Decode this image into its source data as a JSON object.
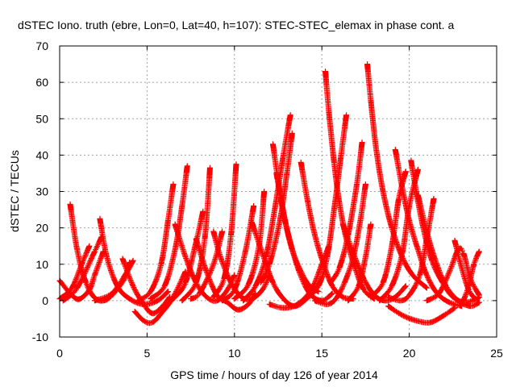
{
  "chart_data": {
    "type": "scatter",
    "title": "dSTEC Iono. truth (ebre, Lon=0, Lat=40, h=107): STEC-STEC_elemax in phase cont. a",
    "xlabel": "GPS time / hours of day 126 of year 2014",
    "ylabel": "dSTEC  / TECUs",
    "xlim": [
      0,
      25
    ],
    "ylim": [
      -10,
      70
    ],
    "xticks": [
      0,
      5,
      10,
      15,
      20,
      25
    ],
    "yticks": [
      -10,
      0,
      10,
      20,
      30,
      40,
      50,
      60,
      70
    ],
    "grid": true,
    "marker": "+",
    "color": "#ff0000",
    "series": [
      {
        "points": [
          [
            0.0,
            5.5
          ],
          [
            0.6,
            2.0
          ],
          [
            1.1,
            0.4
          ],
          [
            1.7,
            3.0
          ],
          [
            2.0,
            7.0
          ],
          [
            2.5,
            13.5
          ]
        ]
      },
      {
        "points": [
          [
            0.0,
            0.5
          ],
          [
            0.7,
            3.5
          ],
          [
            1.3,
            10.5
          ],
          [
            1.7,
            15.0
          ]
        ]
      },
      {
        "points": [
          [
            0.6,
            26.5
          ],
          [
            1.0,
            14.0
          ],
          [
            1.5,
            5.0
          ],
          [
            2.0,
            0.8
          ],
          [
            2.5,
            0.0
          ],
          [
            3.0,
            1.5
          ],
          [
            3.7,
            6.0
          ],
          [
            4.0,
            10.5
          ]
        ]
      },
      {
        "points": [
          [
            0.2,
            0.0
          ],
          [
            1.0,
            3.5
          ],
          [
            2.0,
            13.5
          ],
          [
            2.4,
            17.5
          ]
        ]
      },
      {
        "points": [
          [
            2.3,
            22.5
          ],
          [
            2.7,
            12.0
          ],
          [
            3.3,
            4.0
          ],
          [
            4.0,
            0.5
          ],
          [
            4.8,
            -1.0
          ],
          [
            5.6,
            0.0
          ],
          [
            6.2,
            2.5
          ]
        ]
      },
      {
        "points": [
          [
            2.0,
            0.0
          ],
          [
            3.0,
            2.0
          ],
          [
            3.8,
            7.5
          ],
          [
            4.2,
            11.0
          ]
        ]
      },
      {
        "points": [
          [
            3.6,
            11.5
          ],
          [
            4.2,
            4.0
          ],
          [
            4.8,
            -1.0
          ],
          [
            5.3,
            -3.5
          ],
          [
            5.8,
            -2.0
          ],
          [
            6.3,
            1.0
          ]
        ]
      },
      {
        "points": [
          [
            4.3,
            -3.0
          ],
          [
            4.8,
            -5.5
          ],
          [
            5.3,
            -6.0
          ],
          [
            5.9,
            -3.0
          ],
          [
            6.5,
            1.0
          ],
          [
            7.2,
            8.0
          ]
        ]
      },
      {
        "points": [
          [
            4.5,
            0.0
          ],
          [
            5.2,
            2.5
          ],
          [
            5.8,
            10.0
          ],
          [
            6.2,
            22.0
          ],
          [
            6.5,
            32.0
          ]
        ]
      },
      {
        "points": [
          [
            5.2,
            0.5
          ],
          [
            6.0,
            4.0
          ],
          [
            6.6,
            14.0
          ],
          [
            7.0,
            26.0
          ],
          [
            7.3,
            37.0
          ]
        ]
      },
      {
        "points": [
          [
            5.8,
            -2.0
          ],
          [
            6.5,
            0.5
          ],
          [
            7.2,
            5.0
          ],
          [
            7.8,
            16.0
          ],
          [
            8.2,
            24.5
          ]
        ]
      },
      {
        "points": [
          [
            6.6,
            21.0
          ],
          [
            7.2,
            12.0
          ],
          [
            7.8,
            5.0
          ],
          [
            8.4,
            1.0
          ],
          [
            9.0,
            0.0
          ],
          [
            9.6,
            3.0
          ],
          [
            10.0,
            7.0
          ]
        ]
      },
      {
        "points": [
          [
            7.0,
            0.0
          ],
          [
            7.8,
            5.0
          ],
          [
            8.3,
            17.0
          ],
          [
            8.6,
            36.5
          ]
        ]
      },
      {
        "points": [
          [
            7.5,
            0.5
          ],
          [
            8.0,
            2.0
          ],
          [
            8.8,
            10.0
          ],
          [
            9.3,
            19.0
          ]
        ]
      },
      {
        "points": [
          [
            7.8,
            17.0
          ],
          [
            8.4,
            8.0
          ],
          [
            9.0,
            1.5
          ],
          [
            9.6,
            -0.5
          ],
          [
            10.2,
            -2.5
          ],
          [
            10.8,
            -1.0
          ],
          [
            11.2,
            2.0
          ]
        ]
      },
      {
        "points": [
          [
            8.8,
            19.0
          ],
          [
            9.2,
            12.0
          ],
          [
            9.8,
            5.0
          ],
          [
            10.4,
            1.0
          ],
          [
            11.0,
            0.5
          ],
          [
            11.6,
            3.0
          ],
          [
            12.0,
            7.0
          ]
        ]
      },
      {
        "points": [
          [
            8.8,
            1.0
          ],
          [
            9.4,
            6.0
          ],
          [
            9.8,
            18.0
          ],
          [
            10.1,
            37.5
          ]
        ]
      },
      {
        "points": [
          [
            9.3,
            0.0
          ],
          [
            10.0,
            3.0
          ],
          [
            10.6,
            13.0
          ],
          [
            11.1,
            26.0
          ]
        ]
      },
      {
        "points": [
          [
            10.0,
            0.5
          ],
          [
            10.8,
            4.5
          ],
          [
            11.4,
            15.0
          ],
          [
            11.7,
            30.0
          ]
        ]
      },
      {
        "points": [
          [
            11.0,
            21.5
          ],
          [
            11.6,
            13.0
          ],
          [
            12.2,
            5.0
          ],
          [
            12.8,
            0.5
          ],
          [
            13.4,
            -1.5
          ],
          [
            14.0,
            0.0
          ],
          [
            14.6,
            4.0
          ]
        ]
      },
      {
        "points": [
          [
            10.5,
            0.0
          ],
          [
            11.2,
            4.0
          ],
          [
            11.8,
            12.0
          ],
          [
            12.3,
            25.0
          ],
          [
            12.8,
            40.0
          ],
          [
            13.2,
            51.0
          ]
        ]
      },
      {
        "points": [
          [
            11.5,
            5.0
          ],
          [
            12.0,
            10.0
          ],
          [
            12.6,
            22.0
          ],
          [
            13.0,
            35.0
          ],
          [
            13.3,
            46.0
          ]
        ]
      },
      {
        "points": [
          [
            12.2,
            43.0
          ],
          [
            12.5,
            33.0
          ],
          [
            12.9,
            22.0
          ],
          [
            13.3,
            14.0
          ],
          [
            13.8,
            8.0
          ],
          [
            14.3,
            4.0
          ],
          [
            14.8,
            2.5
          ]
        ]
      },
      {
        "points": [
          [
            12.4,
            35.0
          ],
          [
            12.8,
            24.0
          ],
          [
            13.2,
            16.0
          ],
          [
            13.7,
            8.0
          ],
          [
            14.3,
            2.0
          ],
          [
            15.0,
            0.0
          ],
          [
            15.6,
            2.0
          ]
        ]
      },
      {
        "points": [
          [
            12.0,
            -1.0
          ],
          [
            12.8,
            -2.0
          ],
          [
            13.6,
            -1.0
          ],
          [
            14.4,
            3.0
          ],
          [
            15.0,
            10.0
          ],
          [
            15.4,
            15.0
          ]
        ]
      },
      {
        "points": [
          [
            13.8,
            38.0
          ],
          [
            14.2,
            27.0
          ],
          [
            14.6,
            18.0
          ],
          [
            15.1,
            10.0
          ],
          [
            15.6,
            4.0
          ],
          [
            16.2,
            1.0
          ],
          [
            16.8,
            0.5
          ]
        ]
      },
      {
        "points": [
          [
            14.0,
            0.0
          ],
          [
            14.8,
            4.0
          ],
          [
            15.3,
            12.0
          ],
          [
            15.7,
            25.0
          ],
          [
            16.1,
            40.0
          ],
          [
            16.4,
            51.0
          ]
        ]
      },
      {
        "points": [
          [
            15.2,
            63.0
          ],
          [
            15.4,
            52.0
          ],
          [
            15.7,
            38.0
          ],
          [
            16.0,
            27.0
          ],
          [
            16.4,
            17.0
          ],
          [
            16.9,
            9.0
          ],
          [
            17.4,
            3.0
          ],
          [
            18.0,
            0.5
          ]
        ]
      },
      {
        "points": [
          [
            14.6,
            0.0
          ],
          [
            15.3,
            -1.0
          ],
          [
            15.8,
            0.5
          ],
          [
            16.3,
            5.0
          ],
          [
            16.8,
            12.0
          ],
          [
            17.2,
            22.0
          ],
          [
            17.5,
            32.0
          ]
        ]
      },
      {
        "points": [
          [
            15.5,
            5.0
          ],
          [
            16.0,
            9.0
          ],
          [
            16.5,
            18.0
          ],
          [
            17.0,
            32.0
          ],
          [
            17.3,
            43.5
          ]
        ]
      },
      {
        "points": [
          [
            16.2,
            21.0
          ],
          [
            16.8,
            13.0
          ],
          [
            17.4,
            6.0
          ],
          [
            18.0,
            1.5
          ],
          [
            18.6,
            0.0
          ],
          [
            19.2,
            1.0
          ],
          [
            19.8,
            4.0
          ]
        ]
      },
      {
        "points": [
          [
            16.5,
            0.0
          ],
          [
            17.1,
            4.0
          ],
          [
            17.5,
            12.0
          ],
          [
            17.8,
            21.0
          ]
        ]
      },
      {
        "points": [
          [
            17.6,
            65.0
          ],
          [
            17.8,
            55.0
          ],
          [
            18.1,
            42.0
          ],
          [
            18.5,
            30.0
          ],
          [
            19.0,
            20.0
          ],
          [
            19.6,
            12.0
          ],
          [
            20.2,
            7.0
          ],
          [
            21.0,
            3.5
          ]
        ]
      },
      {
        "points": [
          [
            17.8,
            1.0
          ],
          [
            18.5,
            5.0
          ],
          [
            19.0,
            15.0
          ],
          [
            19.4,
            28.0
          ],
          [
            19.8,
            35.5
          ]
        ]
      },
      {
        "points": [
          [
            18.3,
            0.0
          ],
          [
            19.0,
            4.0
          ],
          [
            19.6,
            13.0
          ],
          [
            20.0,
            26.0
          ],
          [
            20.5,
            36.0
          ]
        ]
      },
      {
        "points": [
          [
            19.2,
            41.5
          ],
          [
            19.6,
            31.0
          ],
          [
            20.0,
            22.0
          ],
          [
            20.5,
            14.0
          ],
          [
            21.0,
            7.0
          ],
          [
            21.6,
            2.0
          ],
          [
            22.3,
            -0.5
          ],
          [
            23.0,
            -1.5
          ]
        ]
      },
      {
        "points": [
          [
            18.8,
            1.0
          ],
          [
            19.5,
            0.0
          ],
          [
            20.0,
            1.5
          ],
          [
            20.6,
            7.0
          ],
          [
            21.0,
            17.0
          ],
          [
            21.4,
            28.0
          ]
        ]
      },
      {
        "points": [
          [
            20.1,
            38.5
          ],
          [
            20.4,
            30.0
          ],
          [
            20.8,
            20.0
          ],
          [
            21.3,
            11.0
          ],
          [
            21.9,
            5.0
          ],
          [
            22.5,
            1.0
          ],
          [
            23.2,
            -0.5
          ],
          [
            23.8,
            0.5
          ]
        ]
      },
      {
        "points": [
          [
            20.5,
            29.0
          ],
          [
            21.0,
            19.0
          ],
          [
            21.5,
            11.0
          ],
          [
            22.1,
            4.0
          ],
          [
            22.8,
            0.0
          ],
          [
            23.5,
            -1.5
          ],
          [
            24.0,
            -0.5
          ]
        ]
      },
      {
        "points": [
          [
            18.8,
            -1.5
          ],
          [
            19.6,
            -4.0
          ],
          [
            20.4,
            -5.5
          ],
          [
            21.2,
            -6.0
          ],
          [
            22.0,
            -4.0
          ],
          [
            22.6,
            -2.0
          ]
        ]
      },
      {
        "points": [
          [
            21.0,
            0.0
          ],
          [
            21.7,
            2.0
          ],
          [
            22.3,
            8.0
          ],
          [
            22.8,
            14.0
          ],
          [
            23.1,
            13.0
          ],
          [
            23.5,
            6.0
          ],
          [
            24.0,
            1.5
          ]
        ]
      },
      {
        "points": [
          [
            22.6,
            16.5
          ],
          [
            23.0,
            9.0
          ],
          [
            23.4,
            3.0
          ],
          [
            23.8,
            0.5
          ],
          [
            24.0,
            1.0
          ]
        ]
      },
      {
        "points": [
          [
            23.1,
            0.0
          ],
          [
            23.4,
            4.0
          ],
          [
            23.7,
            10.0
          ],
          [
            24.0,
            13.5
          ]
        ]
      }
    ]
  }
}
